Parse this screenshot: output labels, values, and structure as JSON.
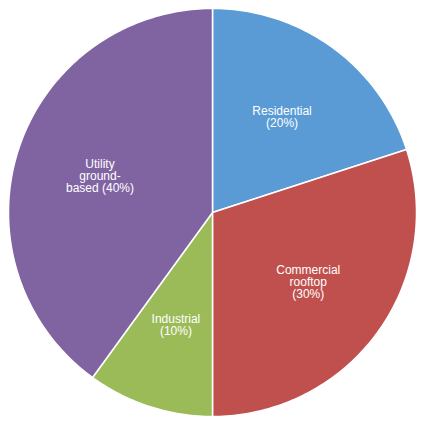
{
  "chart_data": {
    "type": "pie",
    "categories": [
      "Residential\n(20%)",
      "Commercial\nrooftop\n(30%)",
      "Industrial\n(10%)",
      "Utility\nground-\nbased (40%)"
    ],
    "values": [
      20,
      30,
      10,
      40
    ],
    "colors": [
      "#5B9BD5",
      "#C0504D",
      "#9BBB59",
      "#8064A2"
    ]
  }
}
